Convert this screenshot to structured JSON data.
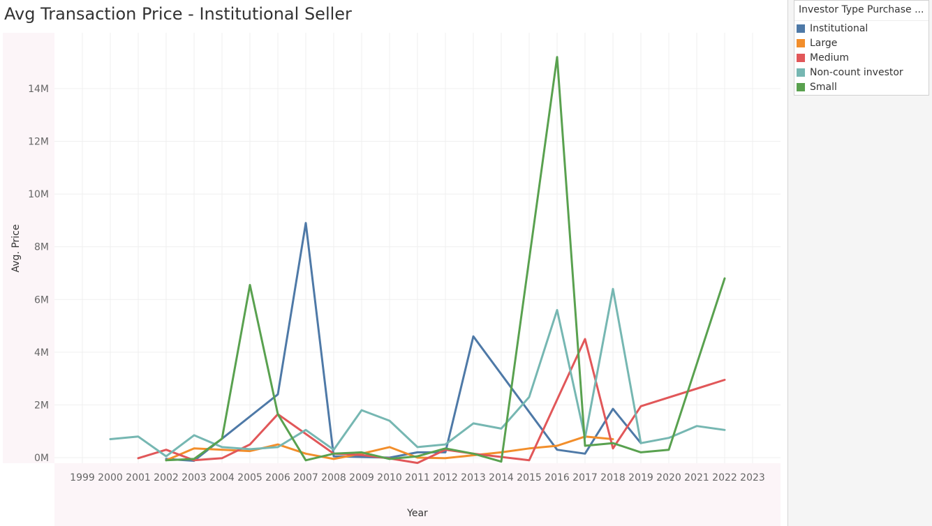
{
  "title": "Avg Transaction Price - Institutional Seller",
  "legend": {
    "title": "Investor Type Purchase ..."
  },
  "chart_data": {
    "type": "line",
    "title": "Avg Transaction Price - Institutional Seller",
    "xlabel": "Year",
    "ylabel": "Avg. Price",
    "x": [
      1999,
      2000,
      2001,
      2002,
      2003,
      2004,
      2005,
      2006,
      2007,
      2008,
      2009,
      2010,
      2011,
      2012,
      2013,
      2014,
      2015,
      2016,
      2017,
      2018,
      2019,
      2020,
      2021,
      2022,
      2023
    ],
    "x_tick_labels": [
      "1999",
      "2000",
      "2001",
      "2002",
      "2003",
      "2004",
      "2005",
      "2006",
      "2007",
      "2008",
      "2009",
      "2010",
      "2011",
      "2012",
      "2013",
      "2014",
      "2015",
      "2016",
      "2017",
      "2018",
      "2019",
      "2020",
      "2021",
      "2022",
      "2023"
    ],
    "ylim": [
      0,
      15500000
    ],
    "y_ticks": [
      0,
      2000000,
      4000000,
      6000000,
      8000000,
      10000000,
      12000000,
      14000000
    ],
    "y_tick_labels": [
      "0M",
      "2M",
      "4M",
      "6M",
      "8M",
      "10M",
      "12M",
      "14M"
    ],
    "grid": true,
    "legend_position": "right",
    "series": [
      {
        "name": "Institutional",
        "color": "#4e79a7",
        "points": [
          [
            2002,
            -50000
          ],
          [
            2003,
            -120000
          ],
          [
            2004,
            720000
          ],
          [
            2006,
            2400000
          ],
          [
            2007,
            8900000
          ],
          [
            2008,
            50000
          ],
          [
            2010,
            0
          ],
          [
            2011,
            200000
          ],
          [
            2012,
            200000
          ],
          [
            2013,
            4600000
          ],
          [
            2016,
            300000
          ],
          [
            2017,
            150000
          ],
          [
            2018,
            1850000
          ],
          [
            2019,
            550000
          ]
        ]
      },
      {
        "name": "Large",
        "color": "#f28e2b",
        "points": [
          [
            2002,
            -100000
          ],
          [
            2003,
            350000
          ],
          [
            2005,
            250000
          ],
          [
            2006,
            500000
          ],
          [
            2007,
            150000
          ],
          [
            2008,
            -50000
          ],
          [
            2009,
            150000
          ],
          [
            2010,
            400000
          ],
          [
            2011,
            0
          ],
          [
            2012,
            -20000
          ],
          [
            2014,
            200000
          ],
          [
            2015,
            350000
          ],
          [
            2016,
            450000
          ],
          [
            2017,
            800000
          ],
          [
            2018,
            700000
          ]
        ]
      },
      {
        "name": "Medium",
        "color": "#e15759",
        "points": [
          [
            2001,
            -20000
          ],
          [
            2002,
            300000
          ],
          [
            2003,
            -100000
          ],
          [
            2004,
            -20000
          ],
          [
            2005,
            500000
          ],
          [
            2006,
            1650000
          ],
          [
            2007,
            900000
          ],
          [
            2008,
            150000
          ],
          [
            2009,
            100000
          ],
          [
            2010,
            -30000
          ],
          [
            2011,
            -200000
          ],
          [
            2012,
            300000
          ],
          [
            2013,
            150000
          ],
          [
            2015,
            -100000
          ],
          [
            2017,
            4500000
          ],
          [
            2018,
            350000
          ],
          [
            2019,
            1950000
          ],
          [
            2022,
            2950000
          ]
        ]
      },
      {
        "name": "Non-count investor",
        "color": "#76b7b2",
        "points": [
          [
            2000,
            700000
          ],
          [
            2001,
            800000
          ],
          [
            2002,
            50000
          ],
          [
            2003,
            850000
          ],
          [
            2004,
            400000
          ],
          [
            2005,
            320000
          ],
          [
            2006,
            400000
          ],
          [
            2007,
            1050000
          ],
          [
            2008,
            300000
          ],
          [
            2009,
            1800000
          ],
          [
            2010,
            1400000
          ],
          [
            2011,
            400000
          ],
          [
            2012,
            500000
          ],
          [
            2013,
            1300000
          ],
          [
            2014,
            1100000
          ],
          [
            2015,
            2300000
          ],
          [
            2016,
            5600000
          ],
          [
            2017,
            750000
          ],
          [
            2018,
            6400000
          ],
          [
            2019,
            550000
          ],
          [
            2020,
            750000
          ],
          [
            2021,
            1200000
          ],
          [
            2022,
            1050000
          ]
        ]
      },
      {
        "name": "Small",
        "color": "#59a14f",
        "points": [
          [
            2002,
            -100000
          ],
          [
            2003,
            -50000
          ],
          [
            2004,
            720000
          ],
          [
            2005,
            6550000
          ],
          [
            2006,
            1650000
          ],
          [
            2007,
            -100000
          ],
          [
            2008,
            150000
          ],
          [
            2009,
            200000
          ],
          [
            2010,
            -50000
          ],
          [
            2011,
            50000
          ],
          [
            2012,
            350000
          ],
          [
            2013,
            150000
          ],
          [
            2014,
            -150000
          ],
          [
            2016,
            15200000
          ],
          [
            2017,
            450000
          ],
          [
            2018,
            550000
          ],
          [
            2019,
            200000
          ],
          [
            2020,
            300000
          ],
          [
            2022,
            6800000
          ]
        ]
      }
    ]
  }
}
